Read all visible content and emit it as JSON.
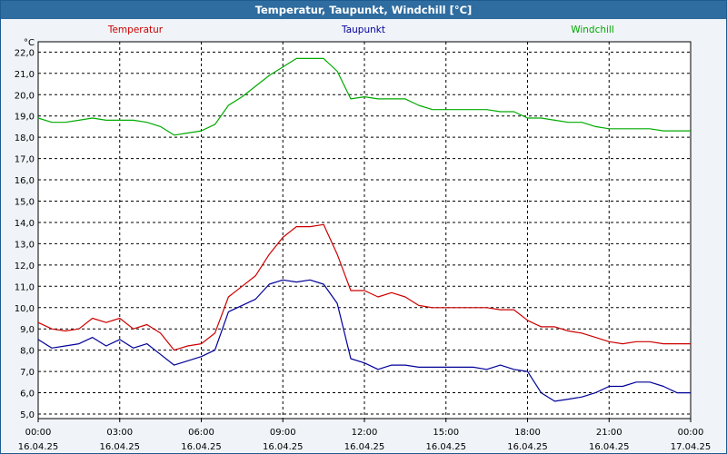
{
  "window": {
    "title": "Temperatur, Taupunkt, Windchill [°C]"
  },
  "chart_data": {
    "type": "line",
    "title": "Temperatur, Taupunkt, Windchill [°C]",
    "ylabel": "°C",
    "xlabel": "",
    "ylim": [
      5.0,
      22.0
    ],
    "y_ticks": [
      "5,0",
      "6,0",
      "7,0",
      "8,0",
      "9,0",
      "10,0",
      "11,0",
      "12,0",
      "13,0",
      "14,0",
      "15,0",
      "16,0",
      "17,0",
      "18,0",
      "19,0",
      "20,0",
      "21,0",
      "22,0"
    ],
    "x_ticks": [
      {
        "time": "00:00",
        "date": "16.04.25"
      },
      {
        "time": "03:00",
        "date": "16.04.25"
      },
      {
        "time": "06:00",
        "date": "16.04.25"
      },
      {
        "time": "09:00",
        "date": "16.04.25"
      },
      {
        "time": "12:00",
        "date": "16.04.25"
      },
      {
        "time": "15:00",
        "date": "16.04.25"
      },
      {
        "time": "18:00",
        "date": "16.04.25"
      },
      {
        "time": "21:00",
        "date": "16.04.25"
      },
      {
        "time": "00:00",
        "date": "17.04.25"
      }
    ],
    "x_hours": [
      0,
      0.5,
      1,
      1.5,
      2,
      2.5,
      3,
      3.5,
      4,
      4.5,
      5,
      5.5,
      6,
      6.5,
      7,
      7.5,
      8,
      8.5,
      9,
      9.5,
      10,
      10.5,
      11,
      11.5,
      12,
      12.5,
      13,
      13.5,
      14,
      14.5,
      15,
      15.5,
      16,
      16.5,
      17,
      17.5,
      18,
      18.5,
      19,
      19.5,
      20,
      20.5,
      21,
      21.5,
      22,
      22.5,
      23,
      23.5,
      24
    ],
    "series": [
      {
        "name": "Temperatur",
        "color": "#cc0000",
        "values": [
          9.3,
          9.0,
          8.9,
          9.0,
          9.5,
          9.3,
          9.5,
          9.0,
          9.2,
          8.8,
          8.0,
          8.2,
          8.3,
          8.8,
          10.5,
          11.0,
          11.5,
          12.5,
          13.3,
          13.8,
          13.8,
          13.9,
          12.5,
          10.8,
          10.8,
          10.5,
          10.7,
          10.5,
          10.1,
          10.0,
          10.0,
          10.0,
          10.0,
          10.0,
          9.9,
          9.9,
          9.4,
          9.1,
          9.1,
          8.9,
          8.8,
          8.6,
          8.4,
          8.3,
          8.4,
          8.4,
          8.3,
          8.3,
          8.3
        ]
      },
      {
        "name": "Taupunkt",
        "color": "#000099",
        "values": [
          8.5,
          8.1,
          8.2,
          8.3,
          8.6,
          8.2,
          8.5,
          8.1,
          8.3,
          7.8,
          7.3,
          7.5,
          7.7,
          8.0,
          9.8,
          10.1,
          10.4,
          11.1,
          11.3,
          11.2,
          11.3,
          11.1,
          10.2,
          7.6,
          7.4,
          7.1,
          7.3,
          7.3,
          7.2,
          7.2,
          7.2,
          7.2,
          7.2,
          7.1,
          7.3,
          7.1,
          7.0,
          6.0,
          5.6,
          5.7,
          5.8,
          6.0,
          6.3,
          6.3,
          6.5,
          6.5,
          6.3,
          6.0,
          6.0
        ]
      },
      {
        "name": "Windchill",
        "color": "#00aa00",
        "values": [
          18.9,
          18.7,
          18.7,
          18.8,
          18.9,
          18.8,
          18.8,
          18.8,
          18.7,
          18.5,
          18.1,
          18.2,
          18.3,
          18.6,
          19.5,
          19.9,
          20.4,
          20.9,
          21.3,
          21.7,
          21.7,
          21.7,
          21.1,
          19.8,
          19.9,
          19.8,
          19.8,
          19.8,
          19.5,
          19.3,
          19.3,
          19.3,
          19.3,
          19.3,
          19.2,
          19.2,
          18.9,
          18.9,
          18.8,
          18.7,
          18.7,
          18.5,
          18.4,
          18.4,
          18.4,
          18.4,
          18.3,
          18.3,
          18.3
        ]
      }
    ],
    "grid": true,
    "legend": "top"
  }
}
